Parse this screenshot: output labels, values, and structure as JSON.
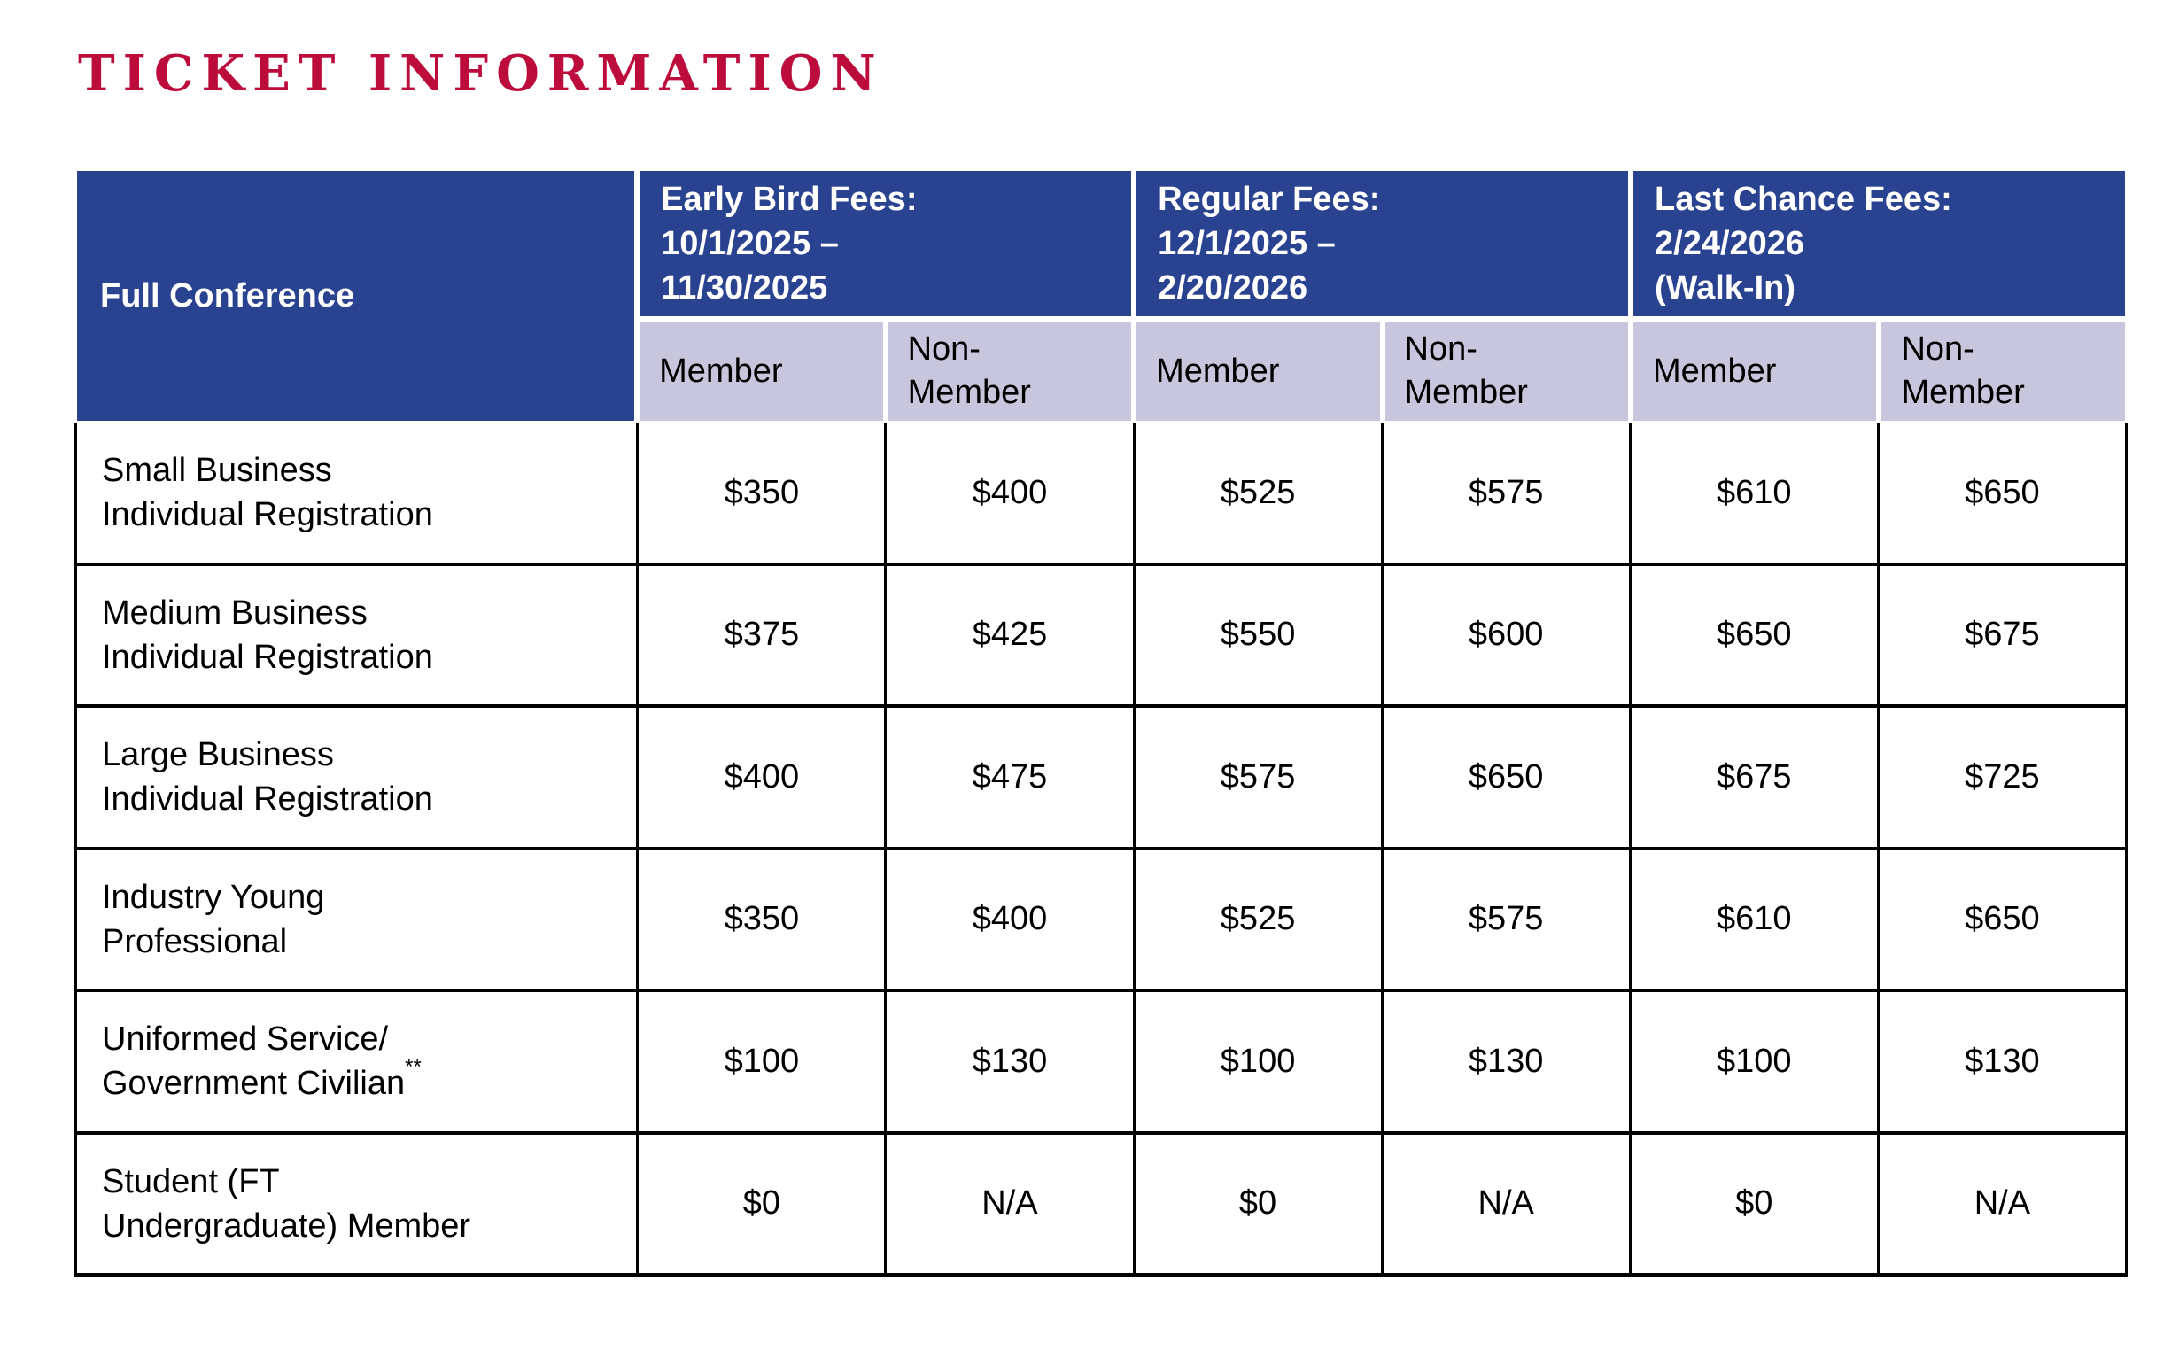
{
  "title": "TICKET INFORMATION",
  "colors": {
    "title_red": "#BC0C3C",
    "header_blue": "#2A4390",
    "subheader_lavender": "#C8C6DD",
    "grid_border": "#000000",
    "header_text": "#FFFFFF",
    "body_text": "#000000"
  },
  "table": {
    "corner_label": "Full Conference",
    "fee_groups": [
      {
        "title_lines": [
          "Early Bird Fees:",
          "10/1/2025 –",
          "11/30/2025"
        ],
        "sub_columns": [
          {
            "lines": [
              "Member"
            ]
          },
          {
            "lines": [
              "Non-",
              "Member"
            ]
          }
        ]
      },
      {
        "title_lines": [
          "Regular Fees:",
          "12/1/2025 –",
          "2/20/2026"
        ],
        "sub_columns": [
          {
            "lines": [
              "Member"
            ]
          },
          {
            "lines": [
              "Non-",
              "Member"
            ]
          }
        ]
      },
      {
        "title_lines": [
          "Last Chance Fees:",
          "2/24/2026",
          "(Walk-In)"
        ],
        "sub_columns": [
          {
            "lines": [
              "Member"
            ]
          },
          {
            "lines": [
              "Non-",
              "Member"
            ]
          }
        ]
      }
    ],
    "rows": [
      {
        "label_lines": [
          "Small Business",
          "Individual Registration"
        ],
        "label_superscript": "",
        "values": [
          "$350",
          "$400",
          "$525",
          "$575",
          "$610",
          "$650"
        ]
      },
      {
        "label_lines": [
          "Medium Business",
          "Individual Registration"
        ],
        "label_superscript": "",
        "values": [
          "$375",
          "$425",
          "$550",
          "$600",
          "$650",
          "$675"
        ]
      },
      {
        "label_lines": [
          "Large Business",
          "Individual Registration"
        ],
        "label_superscript": "",
        "values": [
          "$400",
          "$475",
          "$575",
          "$650",
          "$675",
          "$725"
        ]
      },
      {
        "label_lines": [
          "Industry Young",
          "Professional"
        ],
        "label_superscript": "",
        "values": [
          "$350",
          "$400",
          "$525",
          "$575",
          "$610",
          "$650"
        ]
      },
      {
        "label_lines": [
          "Uniformed Service/",
          "Government Civilian"
        ],
        "label_superscript": "**",
        "values": [
          "$100",
          "$130",
          "$100",
          "$130",
          "$100",
          "$130"
        ]
      },
      {
        "label_lines": [
          "Student (FT",
          "Undergraduate) Member"
        ],
        "label_superscript": "",
        "values": [
          "$0",
          "N/A",
          "$0",
          "N/A",
          "$0",
          "N/A"
        ]
      }
    ]
  }
}
